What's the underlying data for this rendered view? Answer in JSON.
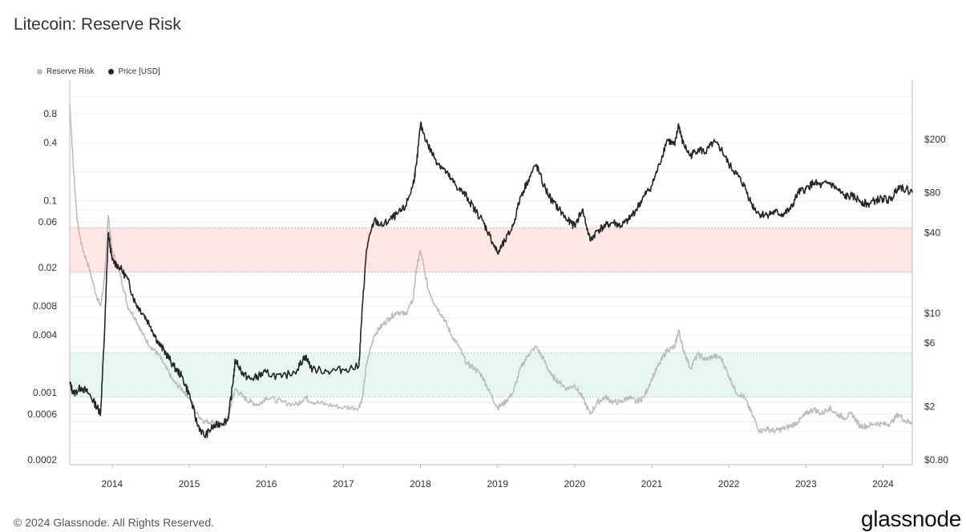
{
  "title": "Litecoin: Reserve Risk",
  "footer": "© 2024 Glassnode. All Rights Reserved.",
  "brand": "glassnode",
  "colors": {
    "reserve_risk": "#bdbdbd",
    "price": "#262626",
    "red_band": "#fde6e6",
    "green_band": "#e6f7ef"
  },
  "chart_data": {
    "type": "line",
    "title": "Litecoin: Reserve Risk",
    "legend": [
      "Reserve Risk",
      "Price [USD]"
    ],
    "legend_position": "top-left",
    "grid": true,
    "xlim": [
      2013.45,
      2024.38
    ],
    "x_ticks": [
      "2014",
      "2015",
      "2016",
      "2017",
      "2018",
      "2019",
      "2020",
      "2021",
      "2022",
      "2023",
      "2024"
    ],
    "y_left": {
      "scale": "log",
      "ticks": [
        "0.8",
        "0.4",
        "0.1",
        "0.06",
        "0.02",
        "0.008",
        "0.004",
        "0.001",
        "0.0006",
        "0.0002"
      ]
    },
    "y_right": {
      "scale": "log",
      "ticks": [
        "$200",
        "$80",
        "$40",
        "$10",
        "$6",
        "$2",
        "$0.80"
      ]
    },
    "bands": [
      {
        "axis": "left",
        "from": 0.018,
        "to": 0.052,
        "color": "red"
      },
      {
        "axis": "left",
        "from": 0.0009,
        "to": 0.0026,
        "color": "green"
      }
    ],
    "series": [
      {
        "name": "Reserve Risk",
        "axis": "left",
        "x": [
          2013.45,
          2013.5,
          2013.55,
          2013.6,
          2013.7,
          2013.8,
          2013.85,
          2013.9,
          2013.95,
          2014.0,
          2014.1,
          2014.2,
          2014.3,
          2014.4,
          2014.5,
          2014.6,
          2014.7,
          2014.8,
          2014.9,
          2015.0,
          2015.1,
          2015.2,
          2015.3,
          2015.4,
          2015.5,
          2015.55,
          2015.6,
          2015.7,
          2015.8,
          2015.9,
          2016.0,
          2016.2,
          2016.4,
          2016.5,
          2016.6,
          2016.8,
          2017.0,
          2017.2,
          2017.25,
          2017.3,
          2017.4,
          2017.5,
          2017.6,
          2017.7,
          2017.8,
          2017.9,
          2017.95,
          2018.0,
          2018.1,
          2018.2,
          2018.3,
          2018.4,
          2018.5,
          2018.6,
          2018.7,
          2018.8,
          2018.9,
          2019.0,
          2019.1,
          2019.2,
          2019.3,
          2019.4,
          2019.5,
          2019.6,
          2019.7,
          2019.8,
          2019.9,
          2020.0,
          2020.1,
          2020.2,
          2020.3,
          2020.4,
          2020.5,
          2020.6,
          2020.7,
          2020.8,
          2020.9,
          2021.0,
          2021.1,
          2021.2,
          2021.3,
          2021.35,
          2021.4,
          2021.5,
          2021.6,
          2021.7,
          2021.8,
          2021.9,
          2022.0,
          2022.1,
          2022.2,
          2022.3,
          2022.4,
          2022.5,
          2022.6,
          2022.7,
          2022.8,
          2022.9,
          2023.0,
          2023.1,
          2023.2,
          2023.3,
          2023.4,
          2023.5,
          2023.6,
          2023.7,
          2023.8,
          2023.9,
          2024.0,
          2024.1,
          2024.2,
          2024.3,
          2024.38
        ],
        "y": [
          1.0,
          0.2,
          0.06,
          0.035,
          0.02,
          0.01,
          0.008,
          0.015,
          0.07,
          0.03,
          0.018,
          0.008,
          0.006,
          0.004,
          0.003,
          0.0025,
          0.0018,
          0.0013,
          0.0011,
          0.0009,
          0.0006,
          0.0005,
          0.0005,
          0.00045,
          0.0005,
          0.0008,
          0.0011,
          0.0009,
          0.0008,
          0.00075,
          0.0009,
          0.0008,
          0.00075,
          0.0009,
          0.0008,
          0.00075,
          0.0007,
          0.0007,
          0.0009,
          0.002,
          0.004,
          0.005,
          0.006,
          0.007,
          0.0065,
          0.009,
          0.02,
          0.03,
          0.012,
          0.008,
          0.006,
          0.004,
          0.003,
          0.002,
          0.0018,
          0.0015,
          0.001,
          0.0007,
          0.0008,
          0.001,
          0.0018,
          0.0025,
          0.003,
          0.0022,
          0.0015,
          0.0013,
          0.0011,
          0.0012,
          0.0009,
          0.0006,
          0.0008,
          0.0009,
          0.0008,
          0.0008,
          0.0009,
          0.0008,
          0.0009,
          0.0014,
          0.002,
          0.0028,
          0.003,
          0.0045,
          0.003,
          0.0018,
          0.0025,
          0.0022,
          0.0024,
          0.0023,
          0.0015,
          0.001,
          0.0009,
          0.0006,
          0.0004,
          0.00042,
          0.0004,
          0.00042,
          0.00045,
          0.0005,
          0.0006,
          0.00068,
          0.0006,
          0.0007,
          0.0006,
          0.00055,
          0.0006,
          0.00045,
          0.00045,
          0.00048,
          0.00047,
          0.00048,
          0.0006,
          0.0005,
          0.0005
        ]
      },
      {
        "name": "Price [USD]",
        "axis": "right",
        "x": [
          2013.45,
          2013.5,
          2013.6,
          2013.7,
          2013.8,
          2013.85,
          2013.9,
          2013.95,
          2014.0,
          2014.1,
          2014.2,
          2014.3,
          2014.4,
          2014.5,
          2014.6,
          2014.7,
          2014.8,
          2014.9,
          2015.0,
          2015.1,
          2015.2,
          2015.3,
          2015.4,
          2015.5,
          2015.55,
          2015.6,
          2015.7,
          2015.8,
          2015.9,
          2016.0,
          2016.2,
          2016.4,
          2016.5,
          2016.6,
          2016.8,
          2017.0,
          2017.2,
          2017.25,
          2017.3,
          2017.4,
          2017.5,
          2017.6,
          2017.7,
          2017.8,
          2017.9,
          2017.95,
          2018.0,
          2018.1,
          2018.2,
          2018.3,
          2018.4,
          2018.5,
          2018.6,
          2018.7,
          2018.8,
          2018.9,
          2019.0,
          2019.1,
          2019.2,
          2019.3,
          2019.4,
          2019.5,
          2019.6,
          2019.7,
          2019.8,
          2019.9,
          2020.0,
          2020.1,
          2020.2,
          2020.3,
          2020.4,
          2020.5,
          2020.6,
          2020.7,
          2020.8,
          2020.9,
          2021.0,
          2021.1,
          2021.2,
          2021.3,
          2021.35,
          2021.4,
          2021.5,
          2021.6,
          2021.7,
          2021.8,
          2021.9,
          2022.0,
          2022.1,
          2022.2,
          2022.3,
          2022.4,
          2022.5,
          2022.6,
          2022.7,
          2022.8,
          2022.9,
          2023.0,
          2023.1,
          2023.2,
          2023.3,
          2023.4,
          2023.5,
          2023.6,
          2023.7,
          2023.8,
          2023.9,
          2024.0,
          2024.1,
          2024.2,
          2024.3,
          2024.38
        ],
        "y": [
          3.0,
          2.5,
          2.8,
          2.5,
          2.0,
          1.8,
          7.0,
          40,
          25,
          22,
          18,
          12,
          10,
          8,
          6,
          5,
          4,
          3.4,
          2.5,
          1.5,
          1.2,
          1.4,
          1.5,
          1.6,
          2.5,
          4.5,
          3.5,
          3.2,
          3.4,
          3.6,
          3.3,
          3.8,
          4.8,
          3.8,
          3.7,
          3.8,
          4.0,
          12,
          30,
          50,
          45,
          50,
          55,
          62,
          90,
          130,
          260,
          180,
          140,
          120,
          100,
          85,
          75,
          60,
          50,
          38,
          28,
          35,
          45,
          75,
          100,
          130,
          90,
          70,
          60,
          50,
          45,
          60,
          35,
          42,
          45,
          48,
          45,
          50,
          60,
          75,
          90,
          130,
          200,
          180,
          260,
          190,
          150,
          170,
          160,
          190,
          170,
          130,
          110,
          90,
          65,
          55,
          55,
          57,
          55,
          60,
          80,
          85,
          95,
          90,
          95,
          85,
          75,
          75,
          70,
          65,
          70,
          72,
          70,
          90,
          85,
          80
        ]
      }
    ]
  }
}
